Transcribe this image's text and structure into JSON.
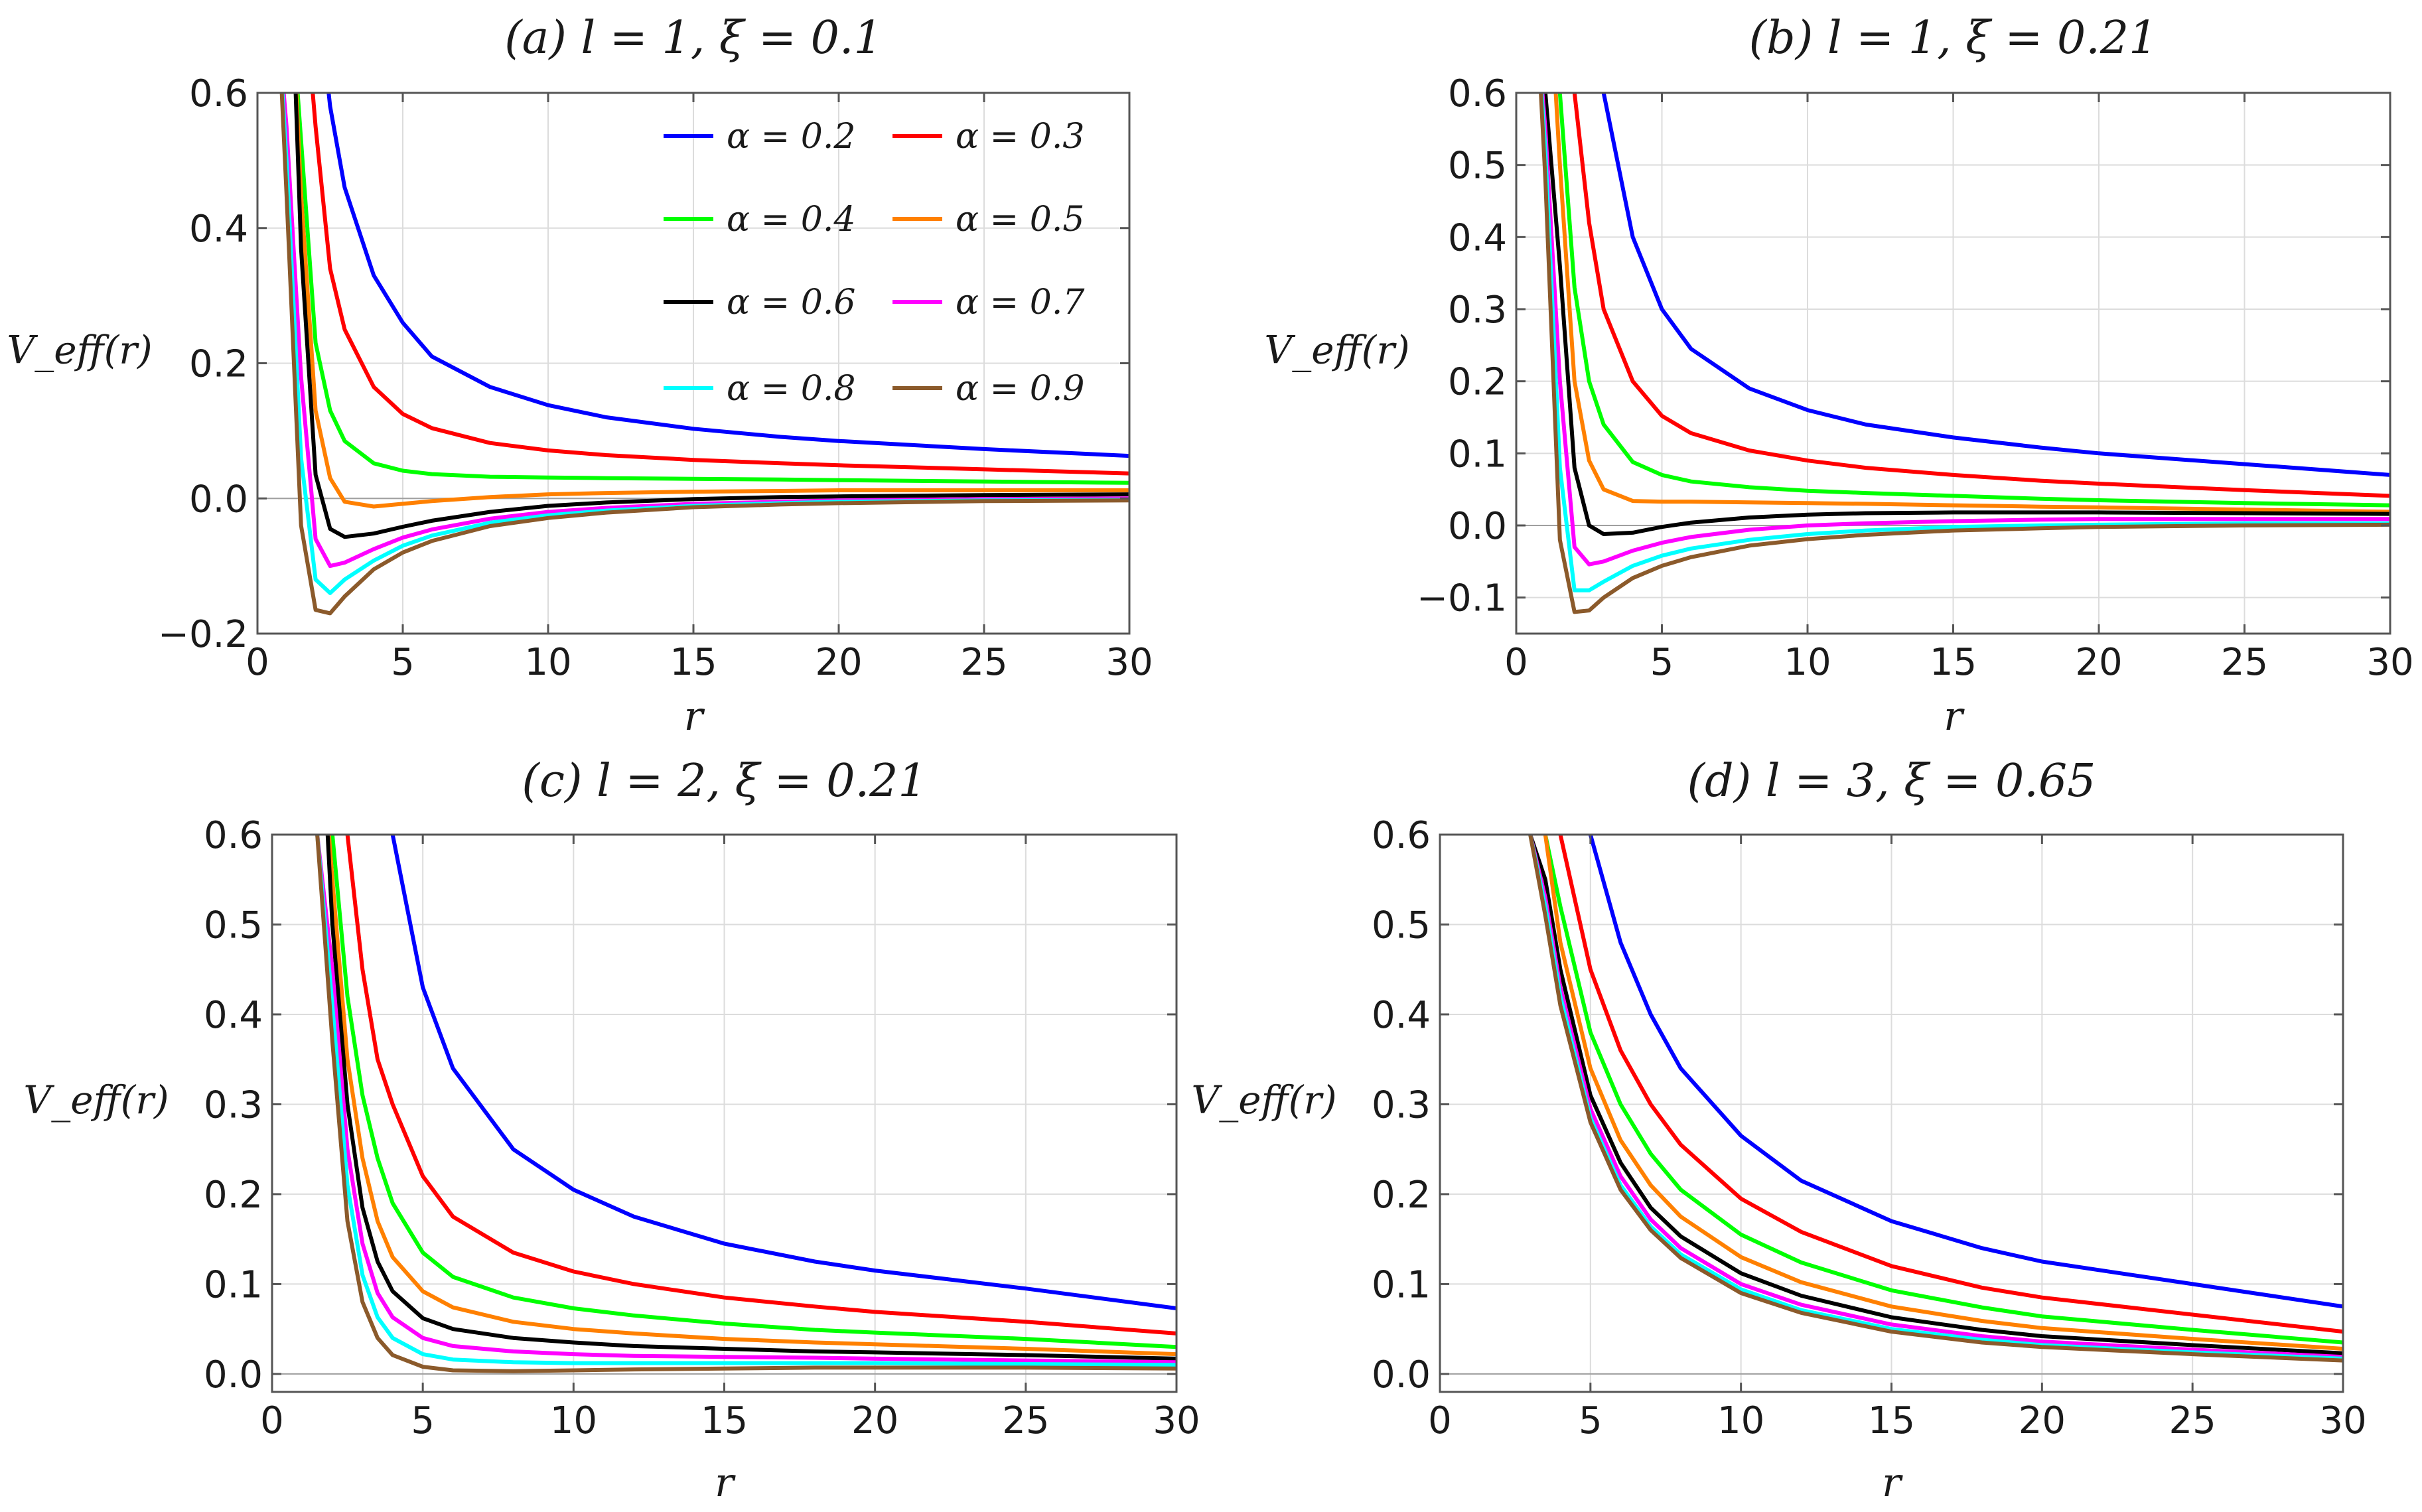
{
  "chart_data": [
    {
      "type": "line",
      "title": "(a) l = 1, ξ = 0.1",
      "xlabel": "r",
      "ylabel": "V_eff(r)",
      "xlim": [
        0,
        30
      ],
      "ylim": [
        -0.2,
        0.6
      ],
      "grid": true,
      "x_ticks": [
        0,
        5,
        10,
        15,
        20,
        25,
        30
      ],
      "x_tick_labels": [
        "0",
        "5",
        "10",
        "15",
        "20",
        "25",
        "30"
      ],
      "y_ticks": [
        -0.2,
        0.0,
        0.2,
        0.4,
        0.6
      ],
      "y_tick_labels": [
        "−0.2",
        "0.0",
        "0.2",
        "0.4",
        "0.6"
      ],
      "legend": "top-right",
      "x": [
        0.5,
        1,
        1.5,
        2,
        2.5,
        3,
        4,
        5,
        6,
        8,
        10,
        12,
        15,
        18,
        20,
        25,
        30
      ],
      "series": [
        {
          "name": "α = 0.2",
          "color": "#0000ff",
          "values": [
            null,
            null,
            null,
            null,
            0.58,
            0.46,
            0.33,
            0.26,
            0.21,
            0.165,
            0.138,
            0.12,
            0.103,
            0.091,
            0.085,
            0.073,
            0.063
          ]
        },
        {
          "name": "α = 0.3",
          "color": "#ff0000",
          "values": [
            null,
            null,
            null,
            0.55,
            0.34,
            0.25,
            0.165,
            0.125,
            0.104,
            0.082,
            0.071,
            0.064,
            0.057,
            0.052,
            0.049,
            0.043,
            0.037
          ]
        },
        {
          "name": "α = 0.4",
          "color": "#00ff00",
          "values": [
            null,
            null,
            0.53,
            0.23,
            0.13,
            0.085,
            0.052,
            0.041,
            0.036,
            0.032,
            0.031,
            0.03,
            0.029,
            0.028,
            0.027,
            0.025,
            0.023
          ]
        },
        {
          "name": "α = 0.5",
          "color": "#ff8000",
          "values": [
            null,
            null,
            0.45,
            0.13,
            0.03,
            -0.005,
            -0.012,
            -0.008,
            -0.004,
            0.002,
            0.006,
            0.008,
            0.01,
            0.011,
            0.012,
            0.012,
            0.012
          ]
        },
        {
          "name": "α = 0.6",
          "color": "#000000",
          "values": [
            null,
            null,
            0.37,
            0.035,
            -0.045,
            -0.057,
            -0.052,
            -0.042,
            -0.033,
            -0.02,
            -0.011,
            -0.006,
            -0.001,
            0.002,
            0.003,
            0.005,
            0.006
          ]
        },
        {
          "name": "α = 0.7",
          "color": "#ff00ff",
          "values": [
            null,
            0.55,
            0.18,
            -0.06,
            -0.1,
            -0.095,
            -0.075,
            -0.058,
            -0.046,
            -0.03,
            -0.02,
            -0.014,
            -0.008,
            -0.005,
            -0.003,
            -0.001,
            0.0
          ]
        },
        {
          "name": "α = 0.8",
          "color": "#00ffff",
          "values": [
            null,
            0.5,
            0.06,
            -0.12,
            -0.14,
            -0.12,
            -0.092,
            -0.07,
            -0.055,
            -0.036,
            -0.025,
            -0.018,
            -0.011,
            -0.007,
            -0.005,
            -0.003,
            -0.002
          ]
        },
        {
          "name": "α = 0.9",
          "color": "#8b5a2b",
          "values": [
            null,
            0.45,
            -0.04,
            -0.165,
            -0.17,
            -0.145,
            -0.105,
            -0.08,
            -0.063,
            -0.041,
            -0.029,
            -0.021,
            -0.013,
            -0.009,
            -0.007,
            -0.004,
            -0.003
          ]
        }
      ]
    },
    {
      "type": "line",
      "title": "(b) l = 1, ξ = 0.21",
      "xlabel": "r",
      "ylabel": "V_eff(r)",
      "xlim": [
        0,
        30
      ],
      "ylim": [
        -0.15,
        0.6
      ],
      "grid": true,
      "x_ticks": [
        0,
        5,
        10,
        15,
        20,
        25,
        30
      ],
      "x_tick_labels": [
        "0",
        "5",
        "10",
        "15",
        "20",
        "25",
        "30"
      ],
      "y_ticks": [
        -0.1,
        0.0,
        0.1,
        0.2,
        0.3,
        0.4,
        0.5,
        0.6
      ],
      "y_tick_labels": [
        "−0.1",
        "0.0",
        "0.1",
        "0.2",
        "0.3",
        "0.4",
        "0.5",
        "0.6"
      ],
      "x": [
        0.5,
        1,
        1.5,
        2,
        2.5,
        3,
        4,
        5,
        6,
        8,
        10,
        12,
        15,
        18,
        20,
        25,
        30
      ],
      "series": [
        {
          "name": "α = 0.2",
          "color": "#0000ff",
          "values": [
            null,
            null,
            null,
            null,
            null,
            0.6,
            0.4,
            0.3,
            0.245,
            0.19,
            0.16,
            0.14,
            0.122,
            0.108,
            0.1,
            0.085,
            0.07
          ]
        },
        {
          "name": "α = 0.3",
          "color": "#ff0000",
          "values": [
            null,
            null,
            null,
            0.6,
            0.42,
            0.3,
            0.2,
            0.152,
            0.128,
            0.104,
            0.09,
            0.08,
            0.07,
            0.062,
            0.058,
            0.049,
            0.041
          ]
        },
        {
          "name": "α = 0.4",
          "color": "#00ff00",
          "values": [
            null,
            null,
            0.6,
            0.33,
            0.2,
            0.14,
            0.088,
            0.07,
            0.061,
            0.053,
            0.048,
            0.045,
            0.041,
            0.037,
            0.035,
            0.031,
            0.028
          ]
        },
        {
          "name": "α = 0.5",
          "color": "#ff8000",
          "values": [
            null,
            null,
            0.5,
            0.2,
            0.09,
            0.05,
            0.034,
            0.033,
            0.033,
            0.032,
            0.031,
            0.03,
            0.028,
            0.026,
            0.025,
            0.022,
            0.019
          ]
        },
        {
          "name": "α = 0.6",
          "color": "#000000",
          "values": [
            null,
            0.6,
            0.36,
            0.08,
            0.0,
            -0.012,
            -0.01,
            -0.002,
            0.004,
            0.011,
            0.015,
            0.017,
            0.018,
            0.018,
            0.018,
            0.017,
            0.016
          ]
        },
        {
          "name": "α = 0.7",
          "color": "#ff00ff",
          "values": [
            null,
            0.55,
            0.2,
            -0.03,
            -0.054,
            -0.05,
            -0.035,
            -0.024,
            -0.016,
            -0.006,
            0.0,
            0.003,
            0.006,
            0.008,
            0.009,
            0.009,
            0.009
          ]
        },
        {
          "name": "α = 0.8",
          "color": "#00ffff",
          "values": [
            null,
            0.52,
            0.08,
            -0.09,
            -0.09,
            -0.078,
            -0.056,
            -0.042,
            -0.032,
            -0.02,
            -0.012,
            -0.007,
            -0.002,
            0.0,
            0.001,
            0.003,
            0.003
          ]
        },
        {
          "name": "α = 0.9",
          "color": "#8b5a2b",
          "values": [
            null,
            0.48,
            -0.02,
            -0.12,
            -0.118,
            -0.1,
            -0.073,
            -0.056,
            -0.044,
            -0.028,
            -0.019,
            -0.013,
            -0.007,
            -0.004,
            -0.002,
            0.0,
            0.001
          ]
        }
      ]
    },
    {
      "type": "line",
      "title": "(c) l = 2, ξ = 0.21",
      "xlabel": "r",
      "ylabel": "V_eff(r)",
      "xlim": [
        0,
        30
      ],
      "ylim": [
        -0.02,
        0.6
      ],
      "grid": true,
      "x_ticks": [
        0,
        5,
        10,
        15,
        20,
        25,
        30
      ],
      "x_tick_labels": [
        "0",
        "5",
        "10",
        "15",
        "20",
        "25",
        "30"
      ],
      "y_ticks": [
        0.0,
        0.1,
        0.2,
        0.3,
        0.4,
        0.5,
        0.6
      ],
      "y_tick_labels": [
        "0.0",
        "0.1",
        "0.2",
        "0.3",
        "0.4",
        "0.5",
        "0.6"
      ],
      "x": [
        1.5,
        2,
        2.5,
        3,
        3.5,
        4,
        5,
        6,
        8,
        10,
        12,
        15,
        18,
        20,
        25,
        30
      ],
      "series": [
        {
          "name": "α = 0.2",
          "color": "#0000ff",
          "values": [
            null,
            null,
            null,
            null,
            null,
            0.6,
            0.43,
            0.34,
            0.25,
            0.205,
            0.175,
            0.145,
            0.125,
            0.115,
            0.095,
            0.073
          ]
        },
        {
          "name": "α = 0.3",
          "color": "#ff0000",
          "values": [
            null,
            null,
            0.6,
            0.45,
            0.35,
            0.3,
            0.22,
            0.175,
            0.135,
            0.114,
            0.1,
            0.085,
            0.075,
            0.069,
            0.058,
            0.045
          ]
        },
        {
          "name": "α = 0.4",
          "color": "#00ff00",
          "values": [
            null,
            0.6,
            0.42,
            0.31,
            0.24,
            0.19,
            0.135,
            0.108,
            0.085,
            0.073,
            0.065,
            0.056,
            0.049,
            0.046,
            0.039,
            0.03
          ]
        },
        {
          "name": "α = 0.5",
          "color": "#ff8000",
          "values": [
            null,
            0.55,
            0.35,
            0.24,
            0.17,
            0.13,
            0.092,
            0.074,
            0.058,
            0.05,
            0.045,
            0.039,
            0.035,
            0.033,
            0.028,
            0.022
          ]
        },
        {
          "name": "α = 0.6",
          "color": "#000000",
          "values": [
            null,
            0.5,
            0.3,
            0.185,
            0.125,
            0.092,
            0.062,
            0.05,
            0.04,
            0.035,
            0.031,
            0.028,
            0.025,
            0.024,
            0.021,
            0.017
          ]
        },
        {
          "name": "α = 0.7",
          "color": "#ff00ff",
          "values": [
            0.6,
            0.45,
            0.25,
            0.145,
            0.09,
            0.063,
            0.04,
            0.031,
            0.025,
            0.022,
            0.02,
            0.019,
            0.018,
            0.017,
            0.015,
            0.013
          ]
        },
        {
          "name": "α = 0.8",
          "color": "#00ffff",
          "values": [
            0.6,
            0.41,
            0.21,
            0.11,
            0.063,
            0.04,
            0.022,
            0.016,
            0.013,
            0.012,
            0.012,
            0.012,
            0.012,
            0.012,
            0.011,
            0.01
          ]
        },
        {
          "name": "α = 0.9",
          "color": "#8b5a2b",
          "values": [
            0.6,
            0.37,
            0.17,
            0.08,
            0.04,
            0.021,
            0.008,
            0.004,
            0.003,
            0.004,
            0.005,
            0.006,
            0.007,
            0.007,
            0.007,
            0.006
          ]
        }
      ]
    },
    {
      "type": "line",
      "title": "(d) l = 3, ξ = 0.65",
      "xlabel": "r",
      "ylabel": "V_eff(r)",
      "xlim": [
        0,
        30
      ],
      "ylim": [
        -0.02,
        0.6
      ],
      "grid": true,
      "x_ticks": [
        0,
        5,
        10,
        15,
        20,
        25,
        30
      ],
      "x_tick_labels": [
        "0",
        "5",
        "10",
        "15",
        "20",
        "25",
        "30"
      ],
      "y_ticks": [
        0.0,
        0.1,
        0.2,
        0.3,
        0.4,
        0.5,
        0.6
      ],
      "y_tick_labels": [
        "0.0",
        "0.1",
        "0.2",
        "0.3",
        "0.4",
        "0.5",
        "0.6"
      ],
      "x": [
        3,
        3.5,
        4,
        5,
        6,
        7,
        8,
        10,
        12,
        15,
        18,
        20,
        25,
        30
      ],
      "series": [
        {
          "name": "α = 0.2",
          "color": "#0000ff",
          "values": [
            null,
            null,
            null,
            0.6,
            0.48,
            0.4,
            0.34,
            0.265,
            0.215,
            0.17,
            0.14,
            0.125,
            0.1,
            0.075
          ]
        },
        {
          "name": "α = 0.3",
          "color": "#ff0000",
          "values": [
            null,
            null,
            0.6,
            0.45,
            0.36,
            0.3,
            0.255,
            0.195,
            0.158,
            0.12,
            0.096,
            0.085,
            0.066,
            0.047
          ]
        },
        {
          "name": "α = 0.4",
          "color": "#00ff00",
          "values": [
            null,
            0.6,
            0.52,
            0.38,
            0.3,
            0.245,
            0.205,
            0.155,
            0.124,
            0.093,
            0.074,
            0.064,
            0.049,
            0.035
          ]
        },
        {
          "name": "α = 0.5",
          "color": "#ff8000",
          "values": [
            null,
            0.6,
            0.48,
            0.34,
            0.26,
            0.21,
            0.175,
            0.13,
            0.102,
            0.075,
            0.059,
            0.051,
            0.039,
            0.028
          ]
        },
        {
          "name": "α = 0.6",
          "color": "#000000",
          "values": [
            0.6,
            0.55,
            0.45,
            0.31,
            0.235,
            0.185,
            0.153,
            0.112,
            0.087,
            0.063,
            0.049,
            0.042,
            0.032,
            0.023
          ]
        },
        {
          "name": "α = 0.7",
          "color": "#ff00ff",
          "values": [
            0.6,
            0.53,
            0.43,
            0.295,
            0.22,
            0.172,
            0.14,
            0.1,
            0.077,
            0.055,
            0.042,
            0.036,
            0.027,
            0.019
          ]
        },
        {
          "name": "α = 0.8",
          "color": "#00ffff",
          "values": [
            0.6,
            0.52,
            0.42,
            0.285,
            0.21,
            0.164,
            0.133,
            0.094,
            0.071,
            0.05,
            0.038,
            0.032,
            0.024,
            0.017
          ]
        },
        {
          "name": "α = 0.9",
          "color": "#8b5a2b",
          "values": [
            0.6,
            0.51,
            0.41,
            0.28,
            0.205,
            0.16,
            0.129,
            0.09,
            0.068,
            0.047,
            0.035,
            0.03,
            0.022,
            0.015
          ]
        }
      ]
    }
  ]
}
